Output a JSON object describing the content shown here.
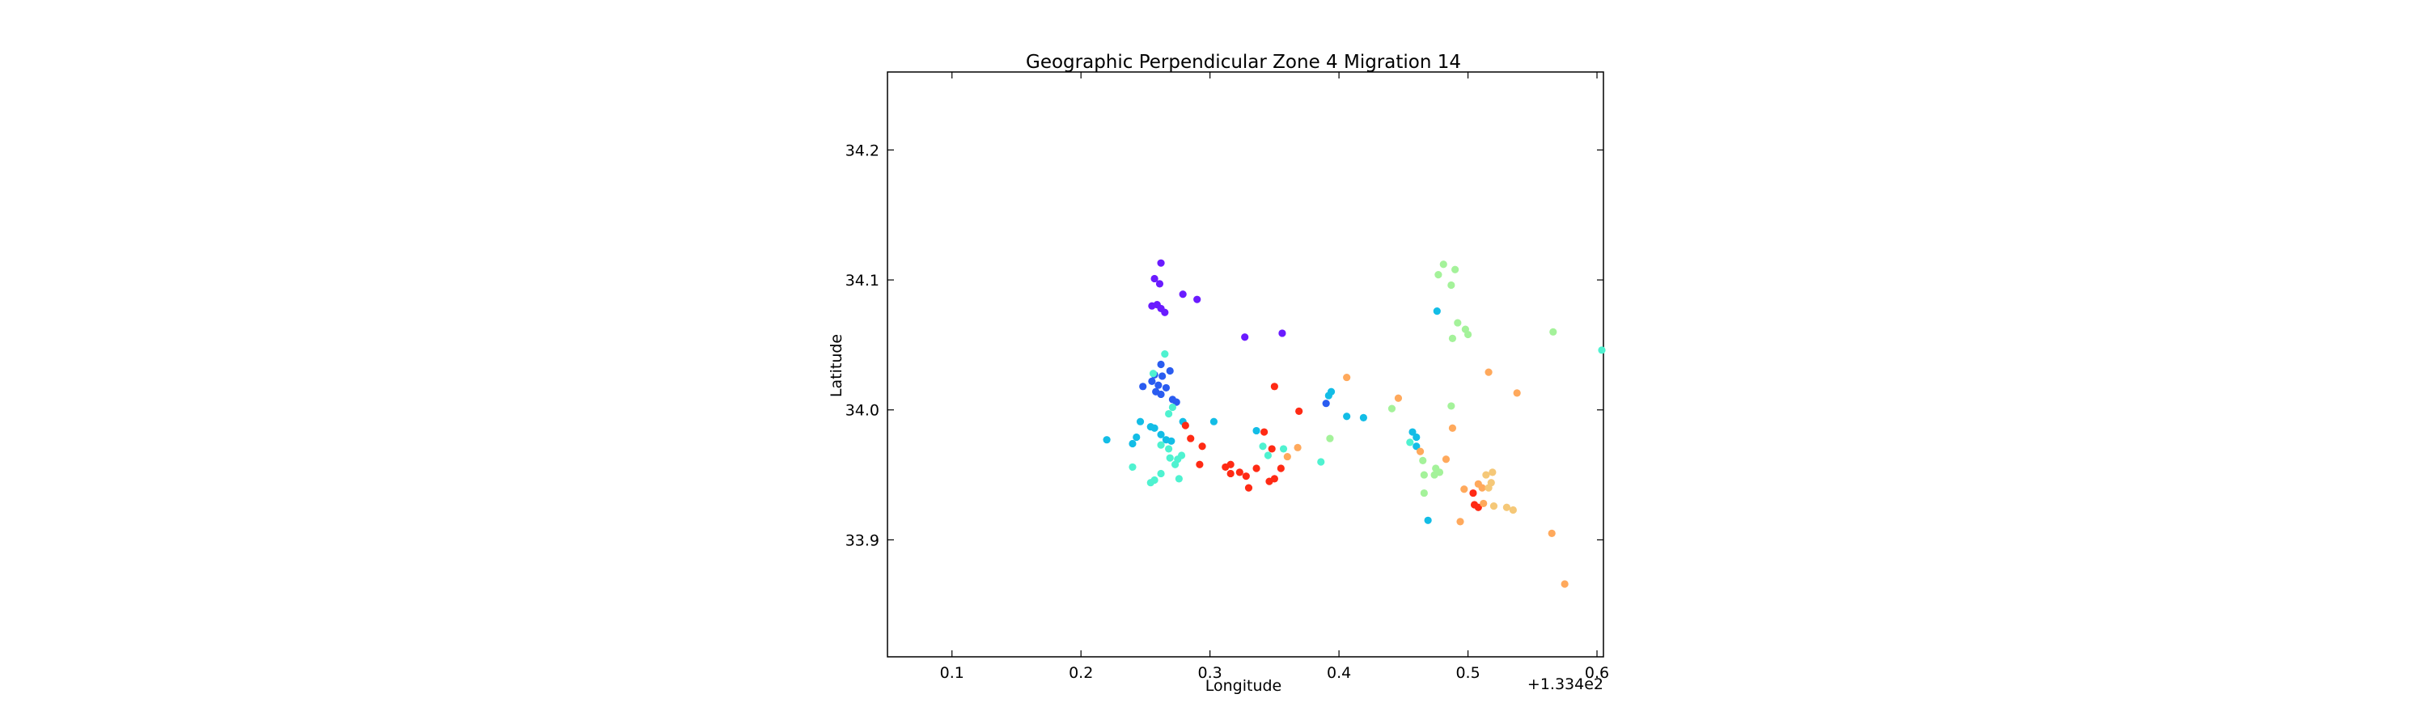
{
  "chart_data": {
    "type": "scatter",
    "title": "Geographic Perpendicular Zone 4 Migration 14",
    "xlabel": "Longitude",
    "ylabel": "Latitude",
    "x_offset_label": "+1.334e2",
    "xlim": [
      0.05,
      0.605
    ],
    "ylim": [
      33.81,
      34.26
    ],
    "xticks": [
      {
        "value": 0.1,
        "label": "0.1"
      },
      {
        "value": 0.2,
        "label": "0.2"
      },
      {
        "value": 0.3,
        "label": "0.3"
      },
      {
        "value": 0.4,
        "label": "0.4"
      },
      {
        "value": 0.5,
        "label": "0.5"
      },
      {
        "value": 0.6,
        "label": "0.6"
      }
    ],
    "yticks": [
      {
        "value": 33.9,
        "label": "33.9"
      },
      {
        "value": 34.0,
        "label": "34.0"
      },
      {
        "value": 34.1,
        "label": "34.1"
      },
      {
        "value": 34.2,
        "label": "34.2"
      }
    ],
    "grid": false,
    "colormap": "rainbow",
    "colors": {
      "purple": "#6a1bff",
      "blue": "#2a5cf0",
      "cyan": "#13bde6",
      "aqua": "#4ff2d0",
      "green": "#a4f29a",
      "orange": "#ffa95c",
      "red": "#ff2a14",
      "tan": "#f5c878"
    },
    "points": [
      {
        "x": 0.262,
        "y": 34.113,
        "c": "purple"
      },
      {
        "x": 0.257,
        "y": 34.101,
        "c": "purple"
      },
      {
        "x": 0.261,
        "y": 34.097,
        "c": "purple"
      },
      {
        "x": 0.279,
        "y": 34.089,
        "c": "purple"
      },
      {
        "x": 0.29,
        "y": 34.085,
        "c": "purple"
      },
      {
        "x": 0.255,
        "y": 34.08,
        "c": "purple"
      },
      {
        "x": 0.259,
        "y": 34.081,
        "c": "purple"
      },
      {
        "x": 0.262,
        "y": 34.078,
        "c": "purple"
      },
      {
        "x": 0.265,
        "y": 34.075,
        "c": "purple"
      },
      {
        "x": 0.327,
        "y": 34.056,
        "c": "purple"
      },
      {
        "x": 0.356,
        "y": 34.059,
        "c": "purple"
      },
      {
        "x": 0.262,
        "y": 34.035,
        "c": "blue"
      },
      {
        "x": 0.269,
        "y": 34.03,
        "c": "blue"
      },
      {
        "x": 0.257,
        "y": 34.027,
        "c": "blue"
      },
      {
        "x": 0.263,
        "y": 34.026,
        "c": "blue"
      },
      {
        "x": 0.255,
        "y": 34.022,
        "c": "blue"
      },
      {
        "x": 0.26,
        "y": 34.019,
        "c": "blue"
      },
      {
        "x": 0.248,
        "y": 34.018,
        "c": "blue"
      },
      {
        "x": 0.266,
        "y": 34.017,
        "c": "blue"
      },
      {
        "x": 0.258,
        "y": 34.014,
        "c": "blue"
      },
      {
        "x": 0.262,
        "y": 34.012,
        "c": "blue"
      },
      {
        "x": 0.271,
        "y": 34.008,
        "c": "blue"
      },
      {
        "x": 0.274,
        "y": 34.006,
        "c": "blue"
      },
      {
        "x": 0.265,
        "y": 34.043,
        "c": "aqua"
      },
      {
        "x": 0.256,
        "y": 34.028,
        "c": "aqua"
      },
      {
        "x": 0.271,
        "y": 34.002,
        "c": "aqua"
      },
      {
        "x": 0.268,
        "y": 33.997,
        "c": "aqua"
      },
      {
        "x": 0.246,
        "y": 33.991,
        "c": "cyan"
      },
      {
        "x": 0.254,
        "y": 33.987,
        "c": "cyan"
      },
      {
        "x": 0.257,
        "y": 33.986,
        "c": "cyan"
      },
      {
        "x": 0.279,
        "y": 33.991,
        "c": "cyan"
      },
      {
        "x": 0.303,
        "y": 33.991,
        "c": "cyan"
      },
      {
        "x": 0.243,
        "y": 33.979,
        "c": "cyan"
      },
      {
        "x": 0.22,
        "y": 33.977,
        "c": "cyan"
      },
      {
        "x": 0.24,
        "y": 33.974,
        "c": "cyan"
      },
      {
        "x": 0.262,
        "y": 33.981,
        "c": "cyan"
      },
      {
        "x": 0.266,
        "y": 33.977,
        "c": "cyan"
      },
      {
        "x": 0.27,
        "y": 33.976,
        "c": "cyan"
      },
      {
        "x": 0.262,
        "y": 33.973,
        "c": "aqua"
      },
      {
        "x": 0.268,
        "y": 33.97,
        "c": "aqua"
      },
      {
        "x": 0.269,
        "y": 33.963,
        "c": "aqua"
      },
      {
        "x": 0.275,
        "y": 33.962,
        "c": "aqua"
      },
      {
        "x": 0.278,
        "y": 33.965,
        "c": "aqua"
      },
      {
        "x": 0.273,
        "y": 33.958,
        "c": "aqua"
      },
      {
        "x": 0.24,
        "y": 33.956,
        "c": "aqua"
      },
      {
        "x": 0.262,
        "y": 33.951,
        "c": "aqua"
      },
      {
        "x": 0.257,
        "y": 33.946,
        "c": "aqua"
      },
      {
        "x": 0.254,
        "y": 33.944,
        "c": "aqua"
      },
      {
        "x": 0.276,
        "y": 33.947,
        "c": "aqua"
      },
      {
        "x": 0.281,
        "y": 33.988,
        "c": "red"
      },
      {
        "x": 0.285,
        "y": 33.978,
        "c": "red"
      },
      {
        "x": 0.294,
        "y": 33.972,
        "c": "red"
      },
      {
        "x": 0.292,
        "y": 33.958,
        "c": "red"
      },
      {
        "x": 0.312,
        "y": 33.956,
        "c": "red"
      },
      {
        "x": 0.316,
        "y": 33.958,
        "c": "red"
      },
      {
        "x": 0.316,
        "y": 33.951,
        "c": "red"
      },
      {
        "x": 0.323,
        "y": 33.952,
        "c": "red"
      },
      {
        "x": 0.328,
        "y": 33.949,
        "c": "red"
      },
      {
        "x": 0.336,
        "y": 33.955,
        "c": "red"
      },
      {
        "x": 0.342,
        "y": 33.983,
        "c": "red"
      },
      {
        "x": 0.35,
        "y": 34.018,
        "c": "red"
      },
      {
        "x": 0.33,
        "y": 33.94,
        "c": "red"
      },
      {
        "x": 0.346,
        "y": 33.945,
        "c": "red"
      },
      {
        "x": 0.35,
        "y": 33.947,
        "c": "red"
      },
      {
        "x": 0.355,
        "y": 33.955,
        "c": "red"
      },
      {
        "x": 0.348,
        "y": 33.97,
        "c": "red"
      },
      {
        "x": 0.369,
        "y": 33.999,
        "c": "red"
      },
      {
        "x": 0.336,
        "y": 33.984,
        "c": "cyan"
      },
      {
        "x": 0.341,
        "y": 33.972,
        "c": "aqua"
      },
      {
        "x": 0.345,
        "y": 33.965,
        "c": "aqua"
      },
      {
        "x": 0.357,
        "y": 33.97,
        "c": "aqua"
      },
      {
        "x": 0.36,
        "y": 33.964,
        "c": "orange"
      },
      {
        "x": 0.368,
        "y": 33.971,
        "c": "orange"
      },
      {
        "x": 0.386,
        "y": 33.96,
        "c": "aqua"
      },
      {
        "x": 0.393,
        "y": 33.978,
        "c": "green"
      },
      {
        "x": 0.39,
        "y": 34.005,
        "c": "blue"
      },
      {
        "x": 0.392,
        "y": 34.011,
        "c": "cyan"
      },
      {
        "x": 0.394,
        "y": 34.014,
        "c": "cyan"
      },
      {
        "x": 0.406,
        "y": 33.995,
        "c": "cyan"
      },
      {
        "x": 0.419,
        "y": 33.994,
        "c": "cyan"
      },
      {
        "x": 0.406,
        "y": 34.025,
        "c": "orange"
      },
      {
        "x": 0.441,
        "y": 34.001,
        "c": "green"
      },
      {
        "x": 0.446,
        "y": 34.009,
        "c": "orange"
      },
      {
        "x": 0.457,
        "y": 33.983,
        "c": "cyan"
      },
      {
        "x": 0.46,
        "y": 33.979,
        "c": "cyan"
      },
      {
        "x": 0.455,
        "y": 33.975,
        "c": "aqua"
      },
      {
        "x": 0.46,
        "y": 33.972,
        "c": "cyan"
      },
      {
        "x": 0.463,
        "y": 33.968,
        "c": "orange"
      },
      {
        "x": 0.465,
        "y": 33.961,
        "c": "green"
      },
      {
        "x": 0.475,
        "y": 33.955,
        "c": "green"
      },
      {
        "x": 0.466,
        "y": 33.95,
        "c": "green"
      },
      {
        "x": 0.474,
        "y": 33.95,
        "c": "green"
      },
      {
        "x": 0.478,
        "y": 33.952,
        "c": "green"
      },
      {
        "x": 0.483,
        "y": 33.962,
        "c": "orange"
      },
      {
        "x": 0.466,
        "y": 33.936,
        "c": "green"
      },
      {
        "x": 0.469,
        "y": 33.915,
        "c": "cyan"
      },
      {
        "x": 0.488,
        "y": 33.986,
        "c": "orange"
      },
      {
        "x": 0.487,
        "y": 34.003,
        "c": "green"
      },
      {
        "x": 0.481,
        "y": 34.112,
        "c": "green"
      },
      {
        "x": 0.49,
        "y": 34.108,
        "c": "green"
      },
      {
        "x": 0.477,
        "y": 34.104,
        "c": "green"
      },
      {
        "x": 0.487,
        "y": 34.096,
        "c": "green"
      },
      {
        "x": 0.476,
        "y": 34.076,
        "c": "cyan"
      },
      {
        "x": 0.492,
        "y": 34.067,
        "c": "green"
      },
      {
        "x": 0.498,
        "y": 34.062,
        "c": "green"
      },
      {
        "x": 0.5,
        "y": 34.058,
        "c": "green"
      },
      {
        "x": 0.488,
        "y": 34.055,
        "c": "green"
      },
      {
        "x": 0.516,
        "y": 34.029,
        "c": "orange"
      },
      {
        "x": 0.538,
        "y": 34.013,
        "c": "orange"
      },
      {
        "x": 0.566,
        "y": 34.06,
        "c": "green"
      },
      {
        "x": 0.605,
        "y": 34.046,
        "c": "aqua"
      },
      {
        "x": 0.497,
        "y": 33.939,
        "c": "orange"
      },
      {
        "x": 0.504,
        "y": 33.936,
        "c": "red"
      },
      {
        "x": 0.508,
        "y": 33.943,
        "c": "orange"
      },
      {
        "x": 0.511,
        "y": 33.94,
        "c": "orange"
      },
      {
        "x": 0.514,
        "y": 33.95,
        "c": "tan"
      },
      {
        "x": 0.519,
        "y": 33.952,
        "c": "tan"
      },
      {
        "x": 0.518,
        "y": 33.944,
        "c": "tan"
      },
      {
        "x": 0.516,
        "y": 33.94,
        "c": "tan"
      },
      {
        "x": 0.505,
        "y": 33.927,
        "c": "red"
      },
      {
        "x": 0.508,
        "y": 33.925,
        "c": "red"
      },
      {
        "x": 0.512,
        "y": 33.928,
        "c": "orange"
      },
      {
        "x": 0.52,
        "y": 33.926,
        "c": "tan"
      },
      {
        "x": 0.53,
        "y": 33.925,
        "c": "tan"
      },
      {
        "x": 0.535,
        "y": 33.923,
        "c": "tan"
      },
      {
        "x": 0.494,
        "y": 33.914,
        "c": "orange"
      },
      {
        "x": 0.565,
        "y": 33.905,
        "c": "orange"
      },
      {
        "x": 0.575,
        "y": 33.866,
        "c": "orange"
      }
    ]
  }
}
